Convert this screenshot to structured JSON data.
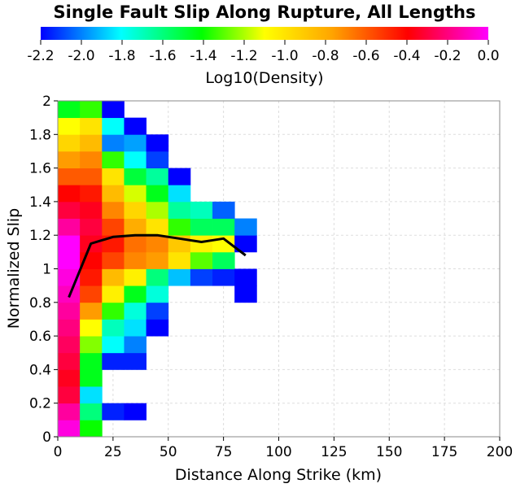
{
  "chart_data": {
    "type": "heatmap",
    "title": "Single Fault Slip Along Rupture, All Lengths",
    "colorbar": {
      "label": "Log10(Density)",
      "range": [
        -2.2,
        0.0
      ],
      "tick_labels": [
        "-2.2",
        "-2.0",
        "-1.8",
        "-1.6",
        "-1.4",
        "-1.2",
        "-1.0",
        "-0.8",
        "-0.6",
        "-0.4",
        "-0.2",
        "0.0"
      ],
      "colormap": [
        "#0000ff",
        "#00ffff",
        "#00ff00",
        "#ffff00",
        "#ffa500",
        "#ff0000",
        "#ff00ff"
      ]
    },
    "xlabel": "Distance Along Strike (km)",
    "ylabel": "Normalized Slip",
    "xlim": [
      0,
      200
    ],
    "ylim": [
      0,
      2
    ],
    "x_tick_labels": [
      "0",
      "25",
      "50",
      "75",
      "100",
      "125",
      "150",
      "175",
      "200"
    ],
    "y_tick_labels": [
      "0",
      "0.2",
      "0.4",
      "0.6",
      "0.8",
      "1",
      "1.2",
      "1.4",
      "1.6",
      "1.8",
      "2"
    ],
    "grid": true,
    "cell_size": {
      "dx": 10,
      "dy": 0.1
    },
    "columns": [
      {
        "x": 0,
        "density": [
          -0.05,
          -0.15,
          -0.3,
          -0.35,
          -0.3,
          -0.25,
          -0.2,
          -0.15,
          -0.1,
          -0.05,
          0.0,
          0.0,
          -0.15,
          -0.3,
          -0.4,
          -0.6,
          -0.75,
          -0.95,
          -1.1,
          -1.45
        ]
      },
      {
        "x": 10,
        "density": [
          -1.4,
          -1.6,
          -1.85,
          -1.45,
          -1.45,
          -1.25,
          -1.1,
          -0.75,
          -0.55,
          -0.45,
          -0.4,
          -0.35,
          -0.3,
          -0.35,
          -0.45,
          -0.6,
          -0.7,
          -0.85,
          -1.0,
          -1.35
        ]
      },
      {
        "x": 20,
        "density": [
          null,
          -2.15,
          null,
          null,
          -2.15,
          -1.8,
          -1.7,
          -1.35,
          -1.05,
          -0.85,
          -0.55,
          -0.45,
          -0.55,
          -0.7,
          -0.85,
          -1.0,
          -1.35,
          -2.0,
          -1.8,
          -2.2
        ]
      },
      {
        "x": 30,
        "density": [
          null,
          -2.2,
          null,
          null,
          -2.15,
          -2.0,
          -1.85,
          -1.75,
          -1.45,
          -1.05,
          -0.7,
          -0.65,
          -0.8,
          -0.95,
          -1.15,
          -1.5,
          -1.8,
          -1.95,
          -2.2,
          null
        ]
      },
      {
        "x": 40,
        "density": [
          null,
          null,
          null,
          null,
          null,
          null,
          -2.2,
          -2.1,
          -1.75,
          -1.6,
          -0.75,
          -0.7,
          -1.0,
          -1.2,
          -1.45,
          -1.65,
          -2.1,
          -2.2,
          null,
          null
        ]
      },
      {
        "x": 50,
        "density": [
          null,
          null,
          null,
          null,
          null,
          null,
          null,
          null,
          null,
          -1.9,
          -1.0,
          -0.9,
          -1.35,
          -1.65,
          -1.85,
          -2.2,
          null,
          null,
          null,
          null
        ]
      },
      {
        "x": 60,
        "density": [
          null,
          null,
          null,
          null,
          null,
          null,
          null,
          null,
          null,
          -2.1,
          -1.3,
          -1.05,
          -1.55,
          -1.7,
          null,
          null,
          null,
          null,
          null,
          null
        ]
      },
      {
        "x": 70,
        "density": [
          null,
          null,
          null,
          null,
          null,
          null,
          null,
          null,
          null,
          -2.15,
          -1.55,
          -1.1,
          -1.55,
          -2.05,
          null,
          null,
          null,
          null,
          null,
          null
        ]
      },
      {
        "x": 80,
        "density": [
          null,
          null,
          null,
          null,
          null,
          null,
          null,
          null,
          -2.2,
          -2.2,
          null,
          -2.2,
          -2.0,
          null,
          null,
          null,
          null,
          null,
          null,
          null
        ]
      }
    ],
    "series": [
      {
        "type": "line",
        "color": "#000000",
        "x": [
          5,
          15,
          25,
          35,
          45,
          55,
          65,
          75,
          85
        ],
        "y": [
          0.83,
          1.15,
          1.19,
          1.2,
          1.2,
          1.18,
          1.16,
          1.18,
          1.08
        ]
      }
    ]
  }
}
